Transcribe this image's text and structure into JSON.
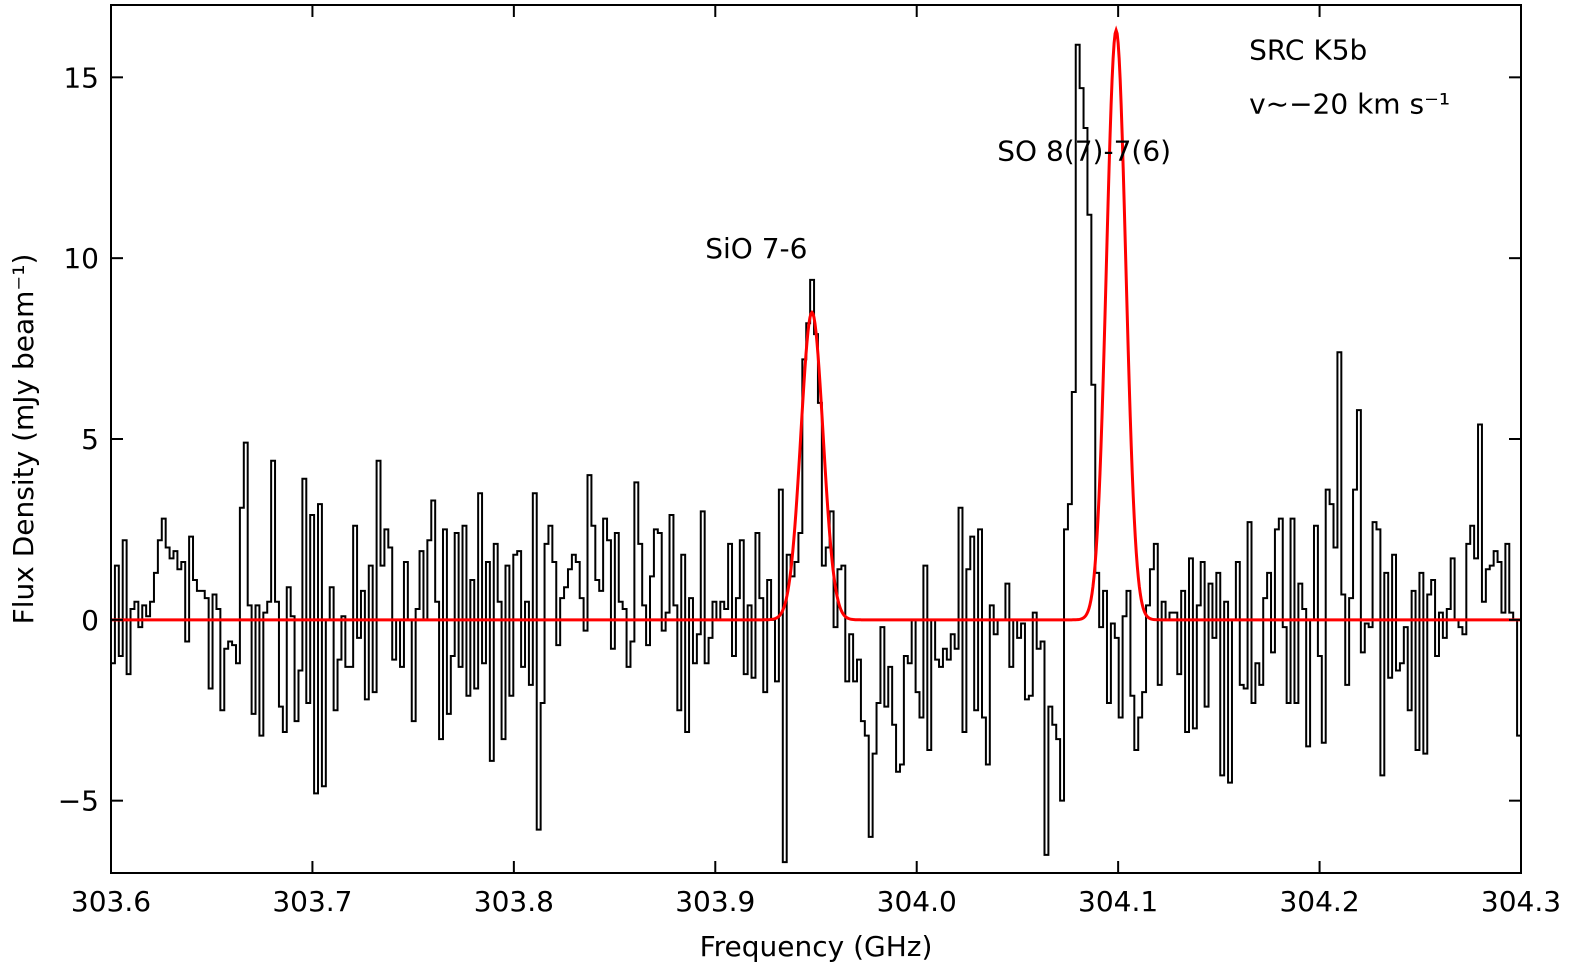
{
  "chart_data": {
    "type": "line",
    "title": "",
    "xlabel": "Frequency (GHz)",
    "ylabel": "Flux Density (mJy beam⁻¹)",
    "xlim": [
      303.6,
      304.3
    ],
    "ylim": [
      -7,
      17
    ],
    "grid": false,
    "x_ticks": [
      303.6,
      303.7,
      303.8,
      303.9,
      304.0,
      304.1,
      304.2,
      304.3
    ],
    "x_tick_labels": [
      "303.6",
      "303.7",
      "303.8",
      "303.9",
      "304.0",
      "304.1",
      "304.2",
      "304.3"
    ],
    "y_ticks": [
      -5,
      0,
      5,
      10,
      15
    ],
    "y_tick_labels": [
      "−5",
      "0",
      "5",
      "10",
      "15"
    ],
    "annotations": [
      {
        "text": "SRC K5b",
        "x": 304.165,
        "y": 15.5
      },
      {
        "text": "v∼−20 km s⁻¹",
        "x": 304.165,
        "y": 14.0
      },
      {
        "text": "SO 8(7)-7(6)",
        "x": 304.04,
        "y": 12.7
      },
      {
        "text": "SiO 7-6",
        "x": 303.895,
        "y": 10.0
      }
    ],
    "series": [
      {
        "style": "step",
        "color": "#000000",
        "x_start": 303.6,
        "x_end": 304.3,
        "values": [
          -1.2,
          1.5,
          -1.0,
          2.2,
          -1.5,
          0.3,
          0.5,
          -0.2,
          0.4,
          0.1,
          0.5,
          1.3,
          2.2,
          2.8,
          2.0,
          1.7,
          1.9,
          1.4,
          1.6,
          -0.6,
          2.3,
          1.1,
          0.8,
          0.8,
          0.6,
          -1.9,
          0.7,
          0.3,
          -2.5,
          -0.8,
          -0.6,
          -0.7,
          -1.2,
          3.1,
          4.9,
          0.4,
          -2.6,
          0.4,
          -3.2,
          0.2,
          0.5,
          4.4,
          0.5,
          -2.4,
          -3.1,
          0.9,
          0.1,
          -2.8,
          -1.4,
          3.9,
          -2.3,
          2.9,
          -4.8,
          3.2,
          -4.6,
          0.0,
          0.9,
          -2.5,
          -1.1,
          0.1,
          -1.3,
          -1.3,
          2.6,
          -0.5,
          0.8,
          -2.2,
          1.5,
          -2.0,
          4.4,
          1.5,
          2.5,
          2.0,
          -1.1,
          0.0,
          -1.3,
          1.6,
          0.0,
          -2.8,
          0.3,
          1.9,
          0.0,
          2.2,
          3.3,
          0.5,
          -3.3,
          2.5,
          -2.6,
          -1.0,
          2.4,
          -1.3,
          2.6,
          -2.1,
          1.1,
          -1.9,
          3.5,
          -1.2,
          1.6,
          -3.9,
          2.1,
          0.5,
          -3.3,
          1.5,
          -2.1,
          1.8,
          1.9,
          -1.3,
          0.5,
          -1.8,
          3.5,
          -5.8,
          -2.3,
          2.1,
          2.6,
          1.6,
          -0.7,
          0.6,
          0.9,
          1.4,
          1.8,
          1.6,
          0.6,
          -0.3,
          4.0,
          2.6,
          1.1,
          0.8,
          2.8,
          2.2,
          -0.8,
          2.4,
          0.5,
          0.3,
          -1.3,
          -0.6,
          3.8,
          2.1,
          0.4,
          -0.7,
          1.2,
          2.5,
          2.4,
          -0.3,
          0.2,
          2.9,
          0.4,
          -2.5,
          1.8,
          -3.1,
          0.6,
          -1.2,
          -0.4,
          3.0,
          -1.2,
          -0.5,
          0.5,
          0.0,
          0.5,
          0.3,
          2.1,
          -1.0,
          0.6,
          2.2,
          -1.5,
          0.4,
          -1.6,
          2.4,
          0.6,
          -2.0,
          1.1,
          0.0,
          -1.7,
          3.6,
          -6.7,
          1.8,
          1.2,
          1.6,
          2.4,
          7.2,
          8.2,
          9.4,
          7.9,
          6.0,
          1.5,
          2.0,
          3.0,
          -0.2,
          1.4,
          1.5,
          -1.7,
          -0.4,
          -1.7,
          -1.1,
          -2.8,
          -3.2,
          -6.0,
          -3.7,
          -2.3,
          -0.2,
          -2.4,
          -1.3,
          -2.9,
          -4.2,
          -4.0,
          -1.0,
          -1.2,
          0.0,
          -2.0,
          -2.7,
          1.5,
          -3.6,
          0.0,
          -1.1,
          -1.3,
          -0.8,
          -1.1,
          -0.4,
          -0.8,
          3.1,
          -3.1,
          1.4,
          2.3,
          -2.5,
          2.5,
          -2.7,
          -4.0,
          0.4,
          -0.4,
          0.0,
          0.0,
          1.0,
          -1.3,
          0.0,
          -0.5,
          -0.1,
          -2.2,
          -2.1,
          0.2,
          -0.8,
          -0.6,
          -6.5,
          -2.4,
          -2.9,
          -3.3,
          -5.0,
          2.5,
          3.2,
          6.3,
          15.9,
          14.7,
          13.6,
          11.2,
          6.5,
          1.3,
          -0.2,
          0.8,
          -2.3,
          -0.1,
          -0.5,
          -2.7,
          0.1,
          0.8,
          -2.1,
          -3.6,
          -2.7,
          -2.0,
          0.4,
          1.4,
          2.1,
          -1.8,
          0.5,
          0.0,
          0.2,
          0.2,
          -1.5,
          0.8,
          -3.1,
          1.7,
          -3.0,
          0.4,
          1.6,
          -2.4,
          1.0,
          -0.5,
          1.3,
          -4.3,
          0.5,
          -4.5,
          0.0,
          1.6,
          -1.8,
          -1.9,
          2.7,
          -2.3,
          -1.2,
          -1.8,
          0.6,
          1.3,
          -0.9,
          2.5,
          2.8,
          -0.2,
          -2.3,
          2.8,
          -2.3,
          1.0,
          0.3,
          -3.5,
          0.0,
          2.6,
          -1.0,
          -3.4,
          3.6,
          3.2,
          2.0,
          7.4,
          0.7,
          -1.8,
          0.6,
          3.6,
          5.8,
          -0.9,
          -0.1,
          -0.2,
          2.7,
          2.5,
          -4.3,
          1.3,
          -1.6,
          1.8,
          -1.4,
          -1.2,
          -0.2,
          -2.5,
          0.8,
          -3.6,
          1.3,
          -3.7,
          0.7,
          1.1,
          -1.0,
          0.2,
          -0.5,
          0.3,
          1.7,
          0.0,
          -0.2,
          -0.4,
          2.1,
          2.6,
          1.7,
          5.4,
          0.5,
          1.4,
          1.5,
          1.9,
          1.6,
          0.2,
          2.1,
          0.2,
          0.0,
          -3.2
        ]
      },
      {
        "style": "line",
        "color": "#ff0000",
        "model": "sum of two Gaussian lines on zero baseline",
        "components": [
          {
            "center": 303.948,
            "amplitude": 8.5,
            "sigma": 0.0055
          },
          {
            "center": 304.099,
            "amplitude": 16.3,
            "sigma": 0.0048
          }
        ]
      }
    ]
  }
}
